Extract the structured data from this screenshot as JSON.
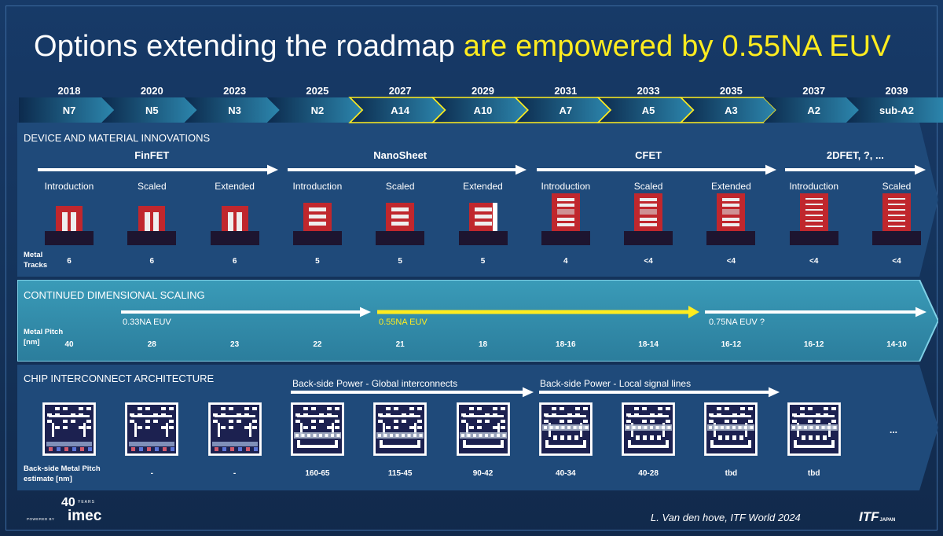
{
  "title": {
    "main": "Options extending the roadmap ",
    "highlight": "are empowered by 0.55NA EUV"
  },
  "timeline": [
    {
      "year": "2018",
      "node": "N7",
      "highlighted": false
    },
    {
      "year": "2020",
      "node": "N5",
      "highlighted": false
    },
    {
      "year": "2023",
      "node": "N3",
      "highlighted": false
    },
    {
      "year": "2025",
      "node": "N2",
      "highlighted": false
    },
    {
      "year": "2027",
      "node": "A14",
      "highlighted": true
    },
    {
      "year": "2029",
      "node": "A10",
      "highlighted": true
    },
    {
      "year": "2031",
      "node": "A7",
      "highlighted": true
    },
    {
      "year": "2033",
      "node": "A5",
      "highlighted": true
    },
    {
      "year": "2035",
      "node": "A3",
      "highlighted": true
    },
    {
      "year": "2037",
      "node": "A2",
      "highlighted": false
    },
    {
      "year": "2039",
      "node": "sub-A2",
      "highlighted": false
    }
  ],
  "device": {
    "title": "DEVICE AND MATERIAL INNOVATIONS",
    "families": [
      {
        "name": "FinFET",
        "center_col": 1
      },
      {
        "name": "NanoSheet",
        "center_col": 4
      },
      {
        "name": "CFET",
        "center_col": 7
      },
      {
        "name": "2DFET, ?, ...",
        "center_col": 9.5
      }
    ],
    "stages": [
      "Introduction",
      "Scaled",
      "Extended",
      "Introduction",
      "Scaled",
      "Extended",
      "Introduction",
      "Scaled",
      "Extended",
      "Introduction",
      "Scaled"
    ],
    "device_types": [
      "finfet",
      "finfet",
      "finfet",
      "nanosheet",
      "nanosheet",
      "forksheet",
      "cfet",
      "cfet",
      "cfet",
      "twod",
      "twod"
    ],
    "metal_tracks_label": [
      "Metal",
      "Tracks"
    ],
    "metal_tracks": [
      "6",
      "6",
      "6",
      "5",
      "5",
      "5",
      "4",
      "<4",
      "<4",
      "<4",
      "<4"
    ]
  },
  "scaling": {
    "title": "CONTINUED DIMENSIONAL SCALING",
    "euv": [
      {
        "label": "0.33NA EUV",
        "color": "#ffffff"
      },
      {
        "label": "0.55NA EUV",
        "color": "#ffec1f"
      },
      {
        "label": "0.75NA EUV ?",
        "color": "#ffffff"
      }
    ],
    "pitch_label": [
      "Metal Pitch",
      "[nm]"
    ],
    "pitches": [
      "40",
      "28",
      "23",
      "22",
      "21",
      "18",
      "18-16",
      "18-14",
      "16-12",
      "16-12",
      "14-10"
    ]
  },
  "interconnect": {
    "title": "CHIP INTERCONNECT ARCHITECTURE",
    "bsp": [
      {
        "label": "Back-side Power - Global interconnects"
      },
      {
        "label": "Back-side Power - Local signal lines"
      }
    ],
    "structure_types": [
      "fs",
      "fs",
      "fs",
      "bsp",
      "bsp",
      "bsp",
      "bspl",
      "bspl",
      "bspl",
      "bspl"
    ],
    "ellipsis": "...",
    "pitch_label": [
      "Back-side Metal Pitch",
      "estimate [nm]"
    ],
    "pitches": [
      "",
      "-",
      "-",
      "160-65",
      "115-45",
      "90-42",
      "40-34",
      "40-28",
      "tbd",
      "tbd"
    ]
  },
  "footer": {
    "citation": "L. Van den hove, ITF World 2024",
    "itf": "ITF",
    "itf_sub": "JAPAN",
    "logo_forty": "40",
    "logo_years": "YEARS",
    "logo_name": "imec",
    "logo_powered": "POWERED BY"
  },
  "colors": {
    "background": "#143259",
    "accent_yellow": "#ffec1f",
    "device_red": "#c0272d",
    "substrate": "#1d1530",
    "chevron_dark": "#0d2b4e",
    "chevron_light": "#2a7fa8"
  }
}
